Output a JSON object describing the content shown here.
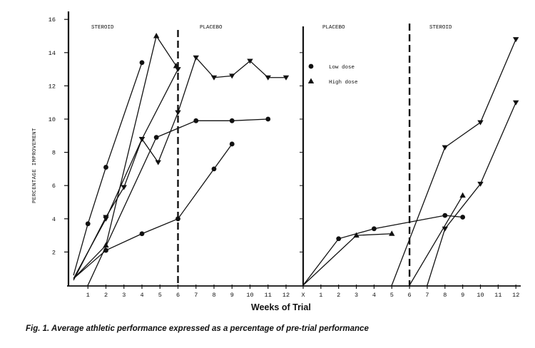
{
  "chart_data": {
    "type": "line",
    "title": "",
    "caption": "Fig. 1. Average athletic performance expressed as a percentage of  pre-trial performance",
    "xlabel": "Weeks of Trial",
    "ylabel": "PERCENTAGE IMPROVEMENT",
    "ylim": [
      0,
      16
    ],
    "yticks": [
      "2",
      "4",
      "6",
      "8",
      "10",
      "12",
      "14",
      "16"
    ],
    "grid": false,
    "legend": {
      "position": "upper-left of right panel",
      "entries": [
        {
          "marker": "circle",
          "label": "Low  dose"
        },
        {
          "marker": "triangle",
          "label": "High dose"
        }
      ]
    },
    "panels": [
      {
        "name": "left",
        "phase_labels": [
          "STEROID",
          "PLACEBO"
        ],
        "switch_week": 6,
        "xticks": [
          "1",
          "2",
          "3",
          "4",
          "5",
          "6",
          "7",
          "8",
          "9",
          "10",
          "11",
          "12"
        ],
        "series": [
          {
            "name": "Low dose A",
            "marker": "circle",
            "x": [
              0.2,
              1,
              2,
              4
            ],
            "y": [
              0.6,
              3.7,
              7.1,
              13.4
            ]
          },
          {
            "name": "High dose A",
            "marker": "triangle-up",
            "x": [
              0.2,
              2,
              4.8,
              5.9
            ],
            "y": [
              0.4,
              2.4,
              15.0,
              13.2
            ]
          },
          {
            "name": "High dose B",
            "marker": "triangle-down",
            "x": [
              0.2,
              2,
              4,
              4.9,
              6,
              7,
              8,
              9,
              10,
              11,
              12
            ],
            "y": [
              0.4,
              4.0,
              8.8,
              7.4,
              10.4,
              13.7,
              12.5,
              12.6,
              13.5,
              12.5,
              12.5
            ]
          },
          {
            "name": "High dose C",
            "marker": "triangle-down",
            "x": [
              0.2,
              2,
              3,
              4,
              6
            ],
            "y": [
              0.3,
              4.1,
              5.9,
              8.8,
              13.0
            ]
          },
          {
            "name": "Low dose B",
            "marker": "circle",
            "x": [
              1,
              4.8,
              7,
              9,
              11
            ],
            "y": [
              0,
              8.9,
              9.9,
              9.9,
              10.0
            ]
          },
          {
            "name": "Low dose C",
            "marker": "circle",
            "x": [
              0.2,
              2,
              4,
              6,
              8,
              9
            ],
            "y": [
              0.4,
              2.1,
              3.1,
              4.0,
              7.0,
              8.5
            ]
          }
        ]
      },
      {
        "name": "right",
        "phase_labels": [
          "PLACEBO",
          "STEROID"
        ],
        "switch_week": 6,
        "xticks": [
          "X",
          "1",
          "2",
          "3",
          "4",
          "5",
          "6",
          "7",
          "8",
          "9",
          "10",
          "11",
          "12"
        ],
        "series": [
          {
            "name": "Low dose",
            "marker": "circle",
            "x": [
              0,
              2,
              4,
              8,
              9
            ],
            "y": [
              0,
              2.8,
              3.4,
              4.2,
              4.1
            ]
          },
          {
            "name": "High dose",
            "marker": "triangle-up",
            "x": [
              0,
              3,
              5
            ],
            "y": [
              0,
              3.0,
              3.1
            ]
          },
          {
            "name": "High dose steroid A",
            "marker": "triangle-down",
            "x": [
              5,
              8,
              10,
              12
            ],
            "y": [
              0,
              8.3,
              9.8,
              14.8
            ]
          },
          {
            "name": "High dose steroid B",
            "marker": "triangle-up",
            "x": [
              6,
              9
            ],
            "y": [
              0,
              5.4
            ]
          },
          {
            "name": "High dose steroid C",
            "marker": "triangle-down",
            "x": [
              7,
              8,
              10,
              12
            ],
            "y": [
              0,
              3.4,
              6.1,
              11.0
            ]
          }
        ]
      }
    ]
  },
  "labels": {
    "y_axis": "PERCENTAGE IMPROVEMENT",
    "x_axis": "Weeks of Trial",
    "caption": "Fig. 1. Average athletic performance expressed as a percentage of  pre-trial performance",
    "left_phase_1": "STEROID",
    "left_phase_2": "PLACEBO",
    "right_phase_1": "PLACEBO",
    "right_phase_2": "STEROID",
    "legend_low": "Low  dose",
    "legend_high": "High dose"
  }
}
